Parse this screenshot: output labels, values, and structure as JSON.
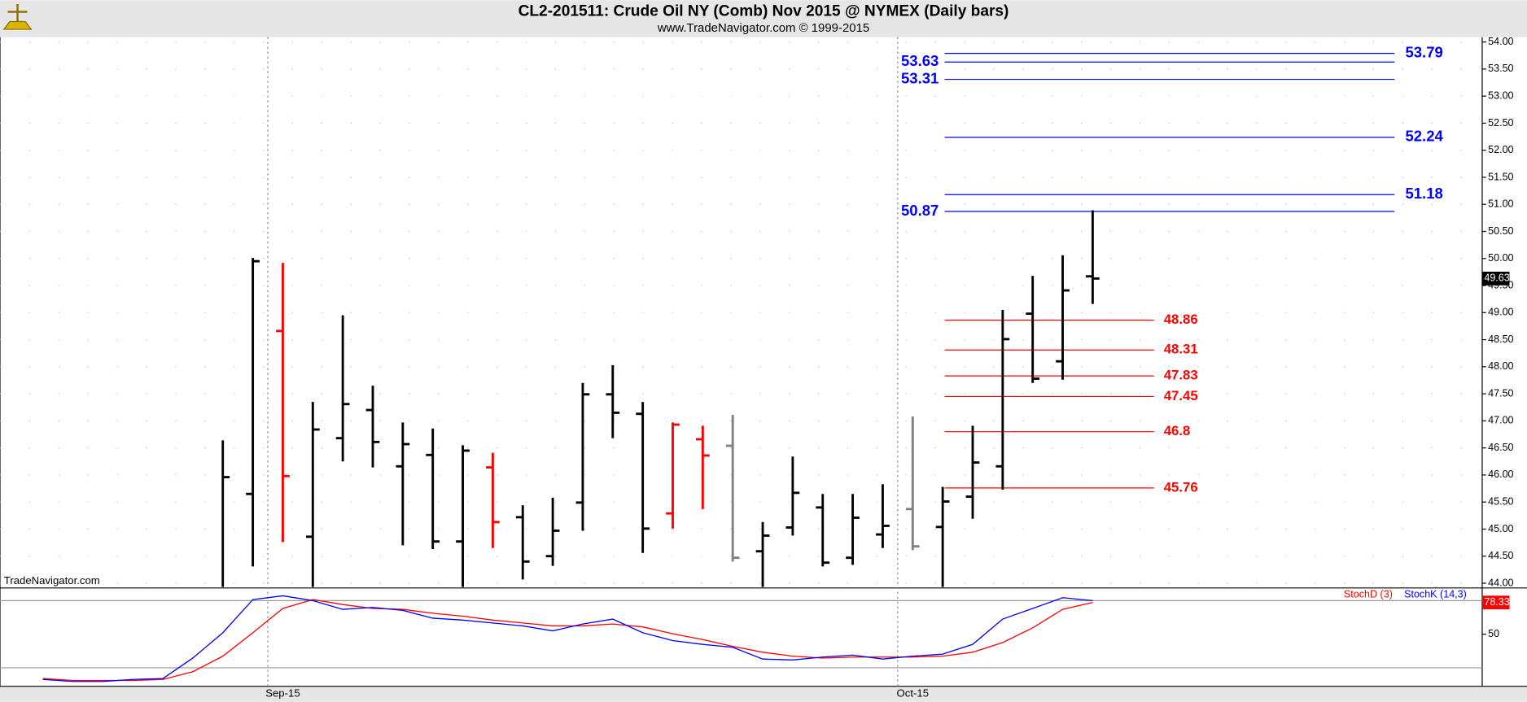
{
  "chart_data": [
    {
      "type": "ohlc",
      "title": "CL2-201511:  Crude Oil NY (Comb) Nov 2015 @ NYMEX  (Daily bars)",
      "subtitle": "www.TradeNavigator.com © 1999-2015",
      "watermark": "TradeNavigator.com",
      "categories": [
        null,
        null,
        null,
        null,
        null,
        null,
        null,
        null,
        "Sep-15",
        null,
        null,
        null,
        null,
        null,
        null,
        null,
        null,
        null,
        null,
        null,
        null,
        null,
        null,
        null,
        null,
        null,
        null,
        null,
        null,
        "Oct-15",
        null,
        null,
        null,
        null,
        null,
        null
      ],
      "open": [
        null,
        null,
        null,
        null,
        null,
        null,
        null,
        45.65,
        48.66,
        44.86,
        46.68,
        47.2,
        46.16,
        46.37,
        44.77,
        46.14,
        45.22,
        44.5,
        45.49,
        47.49,
        47.13,
        45.29,
        46.66,
        46.54,
        44.59,
        45.03,
        45.4,
        44.47,
        44.9,
        45.37,
        45.04,
        45.6,
        46.16,
        48.98,
        48.1,
        49.67
      ],
      "high": [
        null,
        null,
        null,
        null,
        null,
        null,
        46.64,
        50.01,
        49.92,
        47.35,
        48.95,
        47.65,
        46.97,
        46.86,
        46.55,
        46.41,
        45.44,
        45.58,
        47.7,
        48.03,
        47.35,
        46.97,
        46.91,
        47.11,
        45.13,
        46.34,
        45.65,
        45.65,
        45.83,
        47.08,
        45.78,
        46.91,
        49.05,
        49.68,
        50.06,
        50.89
      ],
      "low": [
        null,
        null,
        null,
        null,
        null,
        null,
        43.5,
        44.31,
        44.76,
        43.5,
        46.25,
        46.14,
        44.7,
        44.63,
        43.9,
        44.65,
        44.07,
        44.32,
        44.97,
        46.68,
        44.56,
        45.01,
        45.37,
        44.4,
        43.5,
        44.88,
        44.31,
        44.34,
        44.65,
        44.61,
        43.5,
        45.19,
        45.73,
        47.7,
        47.76,
        49.16
      ],
      "close": [
        null,
        null,
        null,
        null,
        null,
        null,
        45.96,
        49.95,
        45.98,
        46.84,
        47.31,
        46.61,
        46.57,
        44.77,
        46.45,
        45.13,
        44.4,
        44.97,
        47.49,
        47.15,
        45.01,
        46.93,
        46.36,
        44.47,
        44.88,
        45.67,
        44.38,
        45.21,
        45.06,
        44.68,
        45.51,
        46.23,
        48.51,
        47.78,
        49.41,
        49.63
      ],
      "colors": [
        null,
        null,
        null,
        null,
        null,
        null,
        "#000000",
        "#000000",
        "#ff0000",
        "#000000",
        "#000000",
        "#000000",
        "#000000",
        "#000000",
        "#000000",
        "#ff0000",
        "#000000",
        "#000000",
        "#000000",
        "#000000",
        "#000000",
        "#ff0000",
        "#ff0000",
        "#808080",
        "#000000",
        "#000000",
        "#000000",
        "#000000",
        "#000000",
        "#808080",
        "#000000",
        "#000000",
        "#000000",
        "#000000",
        "#000000",
        "#000000"
      ],
      "levels": [
        {
          "value": 53.79,
          "color": "#0000ff",
          "label_side": "right"
        },
        {
          "value": 53.63,
          "color": "#0000ff",
          "label_side": "left"
        },
        {
          "value": 53.31,
          "color": "#0000ff",
          "label_side": "left"
        },
        {
          "value": 52.24,
          "color": "#0000ff",
          "label_side": "right"
        },
        {
          "value": 51.18,
          "color": "#0000ff",
          "label_side": "right"
        },
        {
          "value": 50.87,
          "color": "#0000ff",
          "label_side": "left"
        },
        {
          "value": 48.86,
          "color": "#ff0000",
          "label_side": "red"
        },
        {
          "value": 48.31,
          "color": "#ff0000",
          "label_side": "red"
        },
        {
          "value": 47.83,
          "color": "#ff0000",
          "label_side": "red"
        },
        {
          "value": 47.45,
          "color": "#ff0000",
          "label_side": "red"
        },
        {
          "value": 46.8,
          "color": "#ff0000",
          "label_side": "red"
        },
        {
          "value": 45.76,
          "color": "#ff0000",
          "label_side": "red"
        }
      ],
      "ylim": [
        43.93,
        54.09
      ],
      "yticks": [
        {
          "value": 44,
          "label": "44.00"
        },
        {
          "value": 44.5,
          "label": "44.50"
        },
        {
          "value": 45,
          "label": "45.00"
        },
        {
          "value": 45.5,
          "label": "45.50"
        },
        {
          "value": 46,
          "label": "46.00"
        },
        {
          "value": 46.5,
          "label": "46.50"
        },
        {
          "value": 47,
          "label": "47.00"
        },
        {
          "value": 47.5,
          "label": "47.50"
        },
        {
          "value": 48,
          "label": "48.00"
        },
        {
          "value": 48.5,
          "label": "48.50"
        },
        {
          "value": 49,
          "label": "49.00"
        },
        {
          "value": 49.5,
          "label": "49.50"
        },
        {
          "value": 50,
          "label": "50.00"
        },
        {
          "value": 50.5,
          "label": "50.50"
        },
        {
          "value": 51,
          "label": "51.00"
        },
        {
          "value": 51.5,
          "label": "51.50"
        },
        {
          "value": 52,
          "label": "52.00"
        },
        {
          "value": 52.5,
          "label": "52.50"
        },
        {
          "value": 53,
          "label": "53.00"
        },
        {
          "value": 53.5,
          "label": "53.50"
        },
        {
          "value": 54,
          "label": "54.00"
        }
      ],
      "grid": true
    },
    {
      "type": "line",
      "series": [
        {
          "name": "StochD (3)",
          "color": "#ff0000",
          "values": [
            10.4,
            8.7,
            8.7,
            8.7,
            9.6,
            16.5,
            30.4,
            51.3,
            73,
            80.9,
            76.5,
            73,
            72.2,
            68.7,
            66.1,
            62.6,
            60,
            57.4,
            57.4,
            59.1,
            56.5,
            50.4,
            45.2,
            39.1,
            33.9,
            30.4,
            28.7,
            29.6,
            29.6,
            29.6,
            30.4,
            33.9,
            42.6,
            55.7,
            72.2,
            78.33
          ]
        },
        {
          "name": "StochK (14,3)",
          "color": "#0000ff",
          "values": [
            9.6,
            7.8,
            7.8,
            9.6,
            10.4,
            28.7,
            51.3,
            80.9,
            84.3,
            80,
            72.2,
            73.9,
            71.3,
            64.3,
            62.6,
            60,
            57.4,
            53,
            59.1,
            63.5,
            51.3,
            44.3,
            40.9,
            38.3,
            27.8,
            27,
            29.6,
            31.3,
            27.8,
            30.4,
            32.2,
            40.9,
            63.5,
            73,
            82.6,
            80
          ]
        }
      ],
      "ylim": [
        3.5,
        90.4
      ],
      "yticks": [
        50
      ],
      "levels": [
        20,
        80
      ]
    }
  ]
}
